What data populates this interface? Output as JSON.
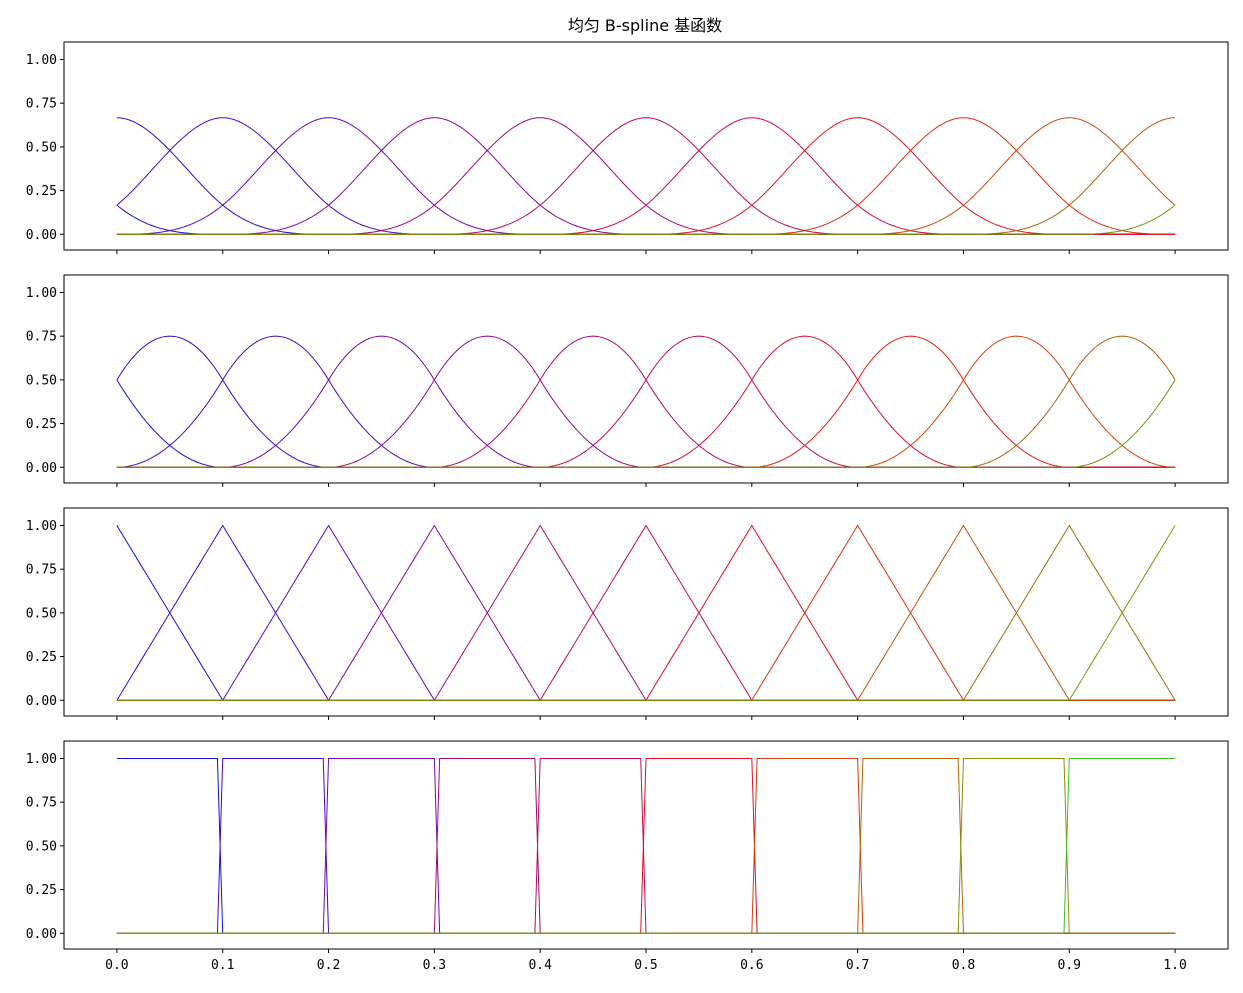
{
  "title": "均匀 B-spline 基函数",
  "x_tick_labels": [
    "0.0",
    "0.1",
    "0.2",
    "0.3",
    "0.4",
    "0.5",
    "0.6",
    "0.7",
    "0.8",
    "0.9",
    "1.0"
  ],
  "y_tick_labels": [
    "0.00",
    "0.25",
    "0.50",
    "0.75",
    "1.00"
  ],
  "chart_data": [
    {
      "type": "line",
      "spline_degree": 3,
      "knot_spacing": 0.1,
      "num_basis": 13,
      "xlim": [
        -0.05,
        1.05
      ],
      "ylim": [
        -0.09,
        1.1
      ],
      "xticks": [
        0,
        0.1,
        0.2,
        0.3,
        0.4,
        0.5,
        0.6,
        0.7,
        0.8,
        0.9,
        1.0
      ],
      "yticks": [
        0,
        0.25,
        0.5,
        0.75,
        1.0
      ],
      "peak_value": 0.667,
      "value_at_knot": 0.167,
      "show_x_tick_labels": false,
      "colors": [
        "#1010e0",
        "#2a0ad8",
        "#4a08c8",
        "#6a06b0",
        "#880896",
        "#a00a7a",
        "#b80a5e",
        "#cc0a40",
        "#de1422",
        "#e02a10",
        "#cc4a0a",
        "#a8620a",
        "#6a9a0a"
      ]
    },
    {
      "type": "line",
      "spline_degree": 2,
      "knot_spacing": 0.1,
      "num_basis": 12,
      "xlim": [
        -0.05,
        1.05
      ],
      "ylim": [
        -0.09,
        1.1
      ],
      "xticks": [
        0,
        0.1,
        0.2,
        0.3,
        0.4,
        0.5,
        0.6,
        0.7,
        0.8,
        0.9,
        1.0
      ],
      "yticks": [
        0,
        0.25,
        0.5,
        0.75,
        1.0
      ],
      "peak_value": 0.75,
      "value_at_knot": 0.5,
      "show_x_tick_labels": false,
      "colors": [
        "#1010e0",
        "#3008d4",
        "#5006c0",
        "#7206a8",
        "#900890",
        "#aa0a72",
        "#c20a52",
        "#d80c32",
        "#e41c14",
        "#d4400a",
        "#b0600a",
        "#6a9a0a"
      ]
    },
    {
      "type": "line",
      "spline_degree": 1,
      "knot_spacing": 0.1,
      "num_basis": 11,
      "xlim": [
        -0.05,
        1.05
      ],
      "ylim": [
        -0.09,
        1.1
      ],
      "xticks": [
        0,
        0.1,
        0.2,
        0.3,
        0.4,
        0.5,
        0.6,
        0.7,
        0.8,
        0.9,
        1.0
      ],
      "yticks": [
        0,
        0.25,
        0.5,
        0.75,
        1.0
      ],
      "peak_value": 1.0,
      "value_at_knot": 1.0,
      "show_x_tick_labels": false,
      "colors": [
        "#1010e0",
        "#3a08d0",
        "#6606b4",
        "#8c0894",
        "#ac0a70",
        "#c80a4c",
        "#e00c26",
        "#dc300a",
        "#c0540a",
        "#9a700a",
        "#6aa00a"
      ]
    },
    {
      "type": "line",
      "spline_degree": 0,
      "knot_spacing": 0.1,
      "num_basis": 10,
      "xlim": [
        -0.05,
        1.05
      ],
      "ylim": [
        -0.09,
        1.1
      ],
      "xticks": [
        0,
        0.1,
        0.2,
        0.3,
        0.4,
        0.5,
        0.6,
        0.7,
        0.8,
        0.9,
        1.0
      ],
      "yticks": [
        0,
        0.25,
        0.5,
        0.75,
        1.0
      ],
      "peak_value": 1.0,
      "value_at_knot": 1.0,
      "show_x_tick_labels": true,
      "colors": [
        "#1010e0",
        "#4208cc",
        "#7606a8",
        "#a00a7c",
        "#c40a4e",
        "#e00c22",
        "#d23c0a",
        "#b0660a",
        "#88900a",
        "#40c020"
      ]
    }
  ]
}
